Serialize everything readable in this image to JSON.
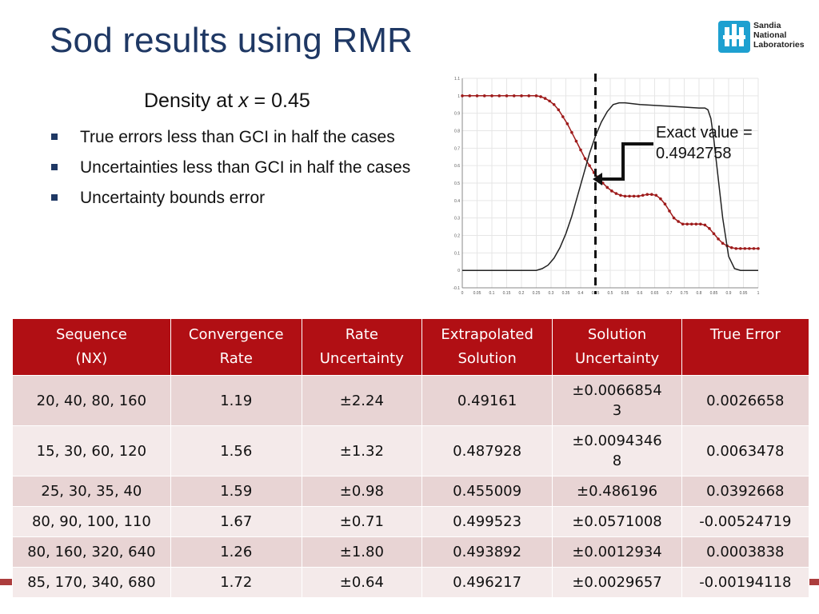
{
  "title": "Sod results using RMR",
  "logo": {
    "line1": "Sandia",
    "line2": "National",
    "line3": "Laboratories"
  },
  "subtitle": {
    "prefix": "Density at ",
    "var": "x",
    "suffix": " = 0.45"
  },
  "bullets": [
    "True errors less than GCI in half the cases",
    "Uncertainties less than GCI in half the cases",
    "Uncertainty bounds error"
  ],
  "annotation": {
    "line1": "Exact value =",
    "line2": "0.4942758"
  },
  "table": {
    "headers": [
      [
        "Sequence",
        "(NX)"
      ],
      [
        "Convergence",
        "Rate"
      ],
      [
        "Rate",
        "Uncertainty"
      ],
      [
        "Extrapolated",
        "Solution"
      ],
      [
        "Solution",
        "Uncertainty"
      ],
      [
        "True Error",
        ""
      ]
    ],
    "rows": [
      [
        "20, 40, 80, 160",
        "1.19",
        "±2.24",
        "0.49161",
        "±0.0066854\n3",
        "0.0026658"
      ],
      [
        "15, 30, 60, 120",
        "1.56",
        "±1.32",
        "0.487928",
        "±0.0094346\n8",
        "0.0063478"
      ],
      [
        "25, 30, 35, 40",
        "1.59",
        "±0.98",
        "0.455009",
        "±0.486196",
        "0.0392668"
      ],
      [
        "80, 90, 100, 110",
        "1.67",
        "±0.71",
        "0.499523",
        "±0.0571008",
        "-0.00524719"
      ],
      [
        "80, 160, 320, 640",
        "1.26",
        "±1.80",
        "0.493892",
        "±0.0012934",
        "0.0003838"
      ],
      [
        "85, 170, 340, 680",
        "1.72",
        "±0.64",
        "0.496217",
        "±0.0029657",
        "-0.00194118"
      ]
    ]
  },
  "chart_data": {
    "type": "line",
    "xlim": [
      0,
      1
    ],
    "ylim": [
      -0.1,
      1.1
    ],
    "x_ticks": [
      "0",
      "0.05",
      "0.1",
      "0.15",
      "0.2",
      "0.25",
      "0.3",
      "0.35",
      "0.4",
      "0.45",
      "0.5",
      "0.55",
      "0.6",
      "0.65",
      "0.7",
      "0.75",
      "0.8",
      "0.85",
      "0.9",
      "0.95",
      "1"
    ],
    "y_ticks": [
      "-0.1",
      "0",
      "0.1",
      "0.2",
      "0.3",
      "0.4",
      "0.5",
      "0.6",
      "0.7",
      "0.8",
      "0.9",
      "1",
      "1.1"
    ],
    "vline_x": 0.45,
    "series": [
      {
        "color": "#9e1b1b",
        "markers": true,
        "x": [
          0,
          0.025,
          0.05,
          0.075,
          0.1,
          0.125,
          0.15,
          0.175,
          0.2,
          0.225,
          0.25,
          0.265,
          0.28,
          0.295,
          0.31,
          0.325,
          0.34,
          0.355,
          0.37,
          0.385,
          0.4,
          0.415,
          0.43,
          0.445,
          0.46,
          0.475,
          0.49,
          0.505,
          0.52,
          0.535,
          0.55,
          0.565,
          0.58,
          0.595,
          0.61,
          0.625,
          0.64,
          0.655,
          0.67,
          0.685,
          0.7,
          0.715,
          0.73,
          0.745,
          0.76,
          0.775,
          0.79,
          0.805,
          0.82,
          0.835,
          0.85,
          0.865,
          0.88,
          0.895,
          0.91,
          0.925,
          0.94,
          0.955,
          0.97,
          0.985,
          1
        ],
        "y": [
          1,
          1,
          1,
          1,
          1,
          1,
          1,
          1,
          1,
          1,
          1,
          0.995,
          0.985,
          0.97,
          0.95,
          0.92,
          0.88,
          0.84,
          0.79,
          0.74,
          0.69,
          0.64,
          0.6,
          0.56,
          0.53,
          0.5,
          0.475,
          0.455,
          0.44,
          0.43,
          0.425,
          0.425,
          0.425,
          0.425,
          0.43,
          0.435,
          0.435,
          0.43,
          0.41,
          0.38,
          0.34,
          0.3,
          0.28,
          0.265,
          0.265,
          0.265,
          0.265,
          0.265,
          0.26,
          0.24,
          0.21,
          0.18,
          0.155,
          0.14,
          0.13,
          0.125,
          0.125,
          0.125,
          0.125,
          0.125,
          0.125
        ]
      },
      {
        "color": "#222222",
        "markers": false,
        "x": [
          0,
          0.25,
          0.27,
          0.29,
          0.31,
          0.33,
          0.35,
          0.37,
          0.39,
          0.41,
          0.43,
          0.45,
          0.47,
          0.49,
          0.51,
          0.53,
          0.55,
          0.6,
          0.7,
          0.8,
          0.82,
          0.83,
          0.84,
          0.85,
          0.86,
          0.87,
          0.88,
          0.9,
          0.92,
          0.94,
          1
        ],
        "y": [
          0,
          0,
          0.01,
          0.03,
          0.07,
          0.13,
          0.21,
          0.31,
          0.43,
          0.55,
          0.67,
          0.77,
          0.85,
          0.91,
          0.95,
          0.96,
          0.96,
          0.95,
          0.94,
          0.93,
          0.93,
          0.92,
          0.87,
          0.75,
          0.6,
          0.45,
          0.3,
          0.08,
          0.01,
          0,
          0
        ]
      }
    ]
  }
}
